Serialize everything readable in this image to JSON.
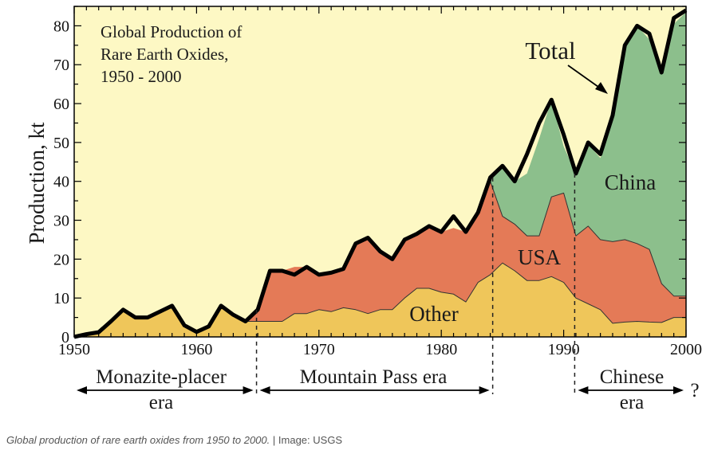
{
  "chart_data": {
    "type": "area",
    "title_lines": [
      "Global Production of",
      "Rare Earth Oxides,",
      "1950 - 2000"
    ],
    "ylabel": "Production, kt",
    "xlabel": "",
    "xlim": [
      1950,
      2000
    ],
    "ylim": [
      0,
      85
    ],
    "x_ticks": [
      1950,
      1960,
      1970,
      1980,
      1990,
      2000
    ],
    "y_ticks": [
      0,
      10,
      20,
      30,
      40,
      50,
      60,
      70,
      80
    ],
    "colors": {
      "background": "#fdf8c4",
      "other": "#efc65a",
      "usa": "#e47a57",
      "china": "#8cbf8c",
      "total_line": "#000000"
    },
    "series": [
      {
        "name": "Other",
        "x": [
          1964,
          1965,
          1966,
          1967,
          1968,
          1969,
          1970,
          1971,
          1972,
          1973,
          1974,
          1975,
          1976,
          1977,
          1978,
          1979,
          1980,
          1981,
          1982,
          1983,
          1984,
          1985,
          1986,
          1987,
          1988,
          1989,
          1990,
          1991,
          1992,
          1993,
          1994,
          1995,
          1996,
          1997,
          1998,
          1999,
          2000
        ],
        "values": [
          4,
          4,
          4,
          4,
          6,
          6,
          7,
          6.5,
          7.5,
          7,
          6,
          7,
          7,
          10,
          12.5,
          12.5,
          11.5,
          11,
          9,
          14,
          16,
          19,
          17,
          14.5,
          14.5,
          15.5,
          14,
          10,
          8.5,
          7,
          3.5,
          3.8,
          4,
          3.8,
          3.7,
          5,
          5
        ]
      },
      {
        "name": "USA",
        "x": [
          1964,
          1965,
          1966,
          1967,
          1968,
          1969,
          1970,
          1971,
          1972,
          1973,
          1974,
          1975,
          1976,
          1977,
          1978,
          1979,
          1980,
          1981,
          1982,
          1983,
          1984,
          1985,
          1986,
          1987,
          1988,
          1989,
          1990,
          1991,
          1992,
          1993,
          1994,
          1995,
          1996,
          1997,
          1998,
          1999,
          2000
        ],
        "values": [
          0,
          3,
          13,
          13,
          12,
          12,
          9,
          10,
          10,
          17,
          19.5,
          15,
          13,
          15,
          14,
          16,
          15.5,
          17,
          18,
          17.5,
          24,
          12,
          12,
          11.5,
          11.5,
          20.5,
          23,
          16,
          20,
          18,
          21,
          21.2,
          20,
          18.7,
          10,
          5.5,
          5.5
        ]
      },
      {
        "name": "China",
        "x": [
          1983,
          1984,
          1985,
          1986,
          1987,
          1988,
          1989,
          1990,
          1991,
          1992,
          1993,
          1994,
          1995,
          1996,
          1997,
          1998,
          1999,
          2000
        ],
        "values": [
          0,
          1,
          13,
          11,
          16,
          25,
          25,
          12,
          16,
          21,
          21,
          31,
          50,
          56,
          54,
          54,
          70,
          73
        ]
      },
      {
        "name": "Total",
        "x": [
          1950,
          1951,
          1952,
          1953,
          1954,
          1955,
          1956,
          1957,
          1958,
          1959,
          1960,
          1961,
          1962,
          1963,
          1964,
          1965,
          1966,
          1967,
          1968,
          1969,
          1970,
          1971,
          1972,
          1973,
          1974,
          1975,
          1976,
          1977,
          1978,
          1979,
          1980,
          1981,
          1982,
          1983,
          1984,
          1985,
          1986,
          1987,
          1988,
          1989,
          1990,
          1991,
          1992,
          1993,
          1994,
          1995,
          1996,
          1997,
          1998,
          1999,
          2000
        ],
        "values": [
          0,
          0.7,
          1.2,
          4,
          7,
          5,
          5,
          6.5,
          8,
          3,
          1.3,
          2.7,
          8,
          5.7,
          4,
          7,
          17,
          17,
          16,
          18,
          16,
          16.5,
          17.5,
          24,
          25.5,
          22,
          20,
          25,
          26.5,
          28.5,
          27,
          31,
          27,
          32,
          41,
          44,
          40,
          47,
          55,
          61,
          52,
          42,
          50,
          47,
          57,
          75,
          80,
          78,
          68,
          82,
          84
        ]
      }
    ],
    "annotations": {
      "total": "Total",
      "china": "China",
      "usa": "USA",
      "other": "Other"
    },
    "eras": [
      {
        "label_lines": [
          "Monazite-placer",
          "era"
        ],
        "start": 1950,
        "end": 1964.9
      },
      {
        "label_lines": [
          "Mountain Pass era"
        ],
        "start": 1964.9,
        "end": 1984.2
      },
      {
        "label_lines": [
          "Chinese",
          "era"
        ],
        "start": 1990.9,
        "end": 2000
      },
      {
        "label_lines": [
          "?"
        ],
        "start": 2000,
        "end": 2000
      }
    ],
    "era_dividers": [
      1964.9,
      1984.2,
      1990.9
    ]
  },
  "caption": {
    "text": "Global production of rare earth oxides from 1950 to 2000.",
    "separator": "|",
    "credit": "Image: USGS"
  }
}
